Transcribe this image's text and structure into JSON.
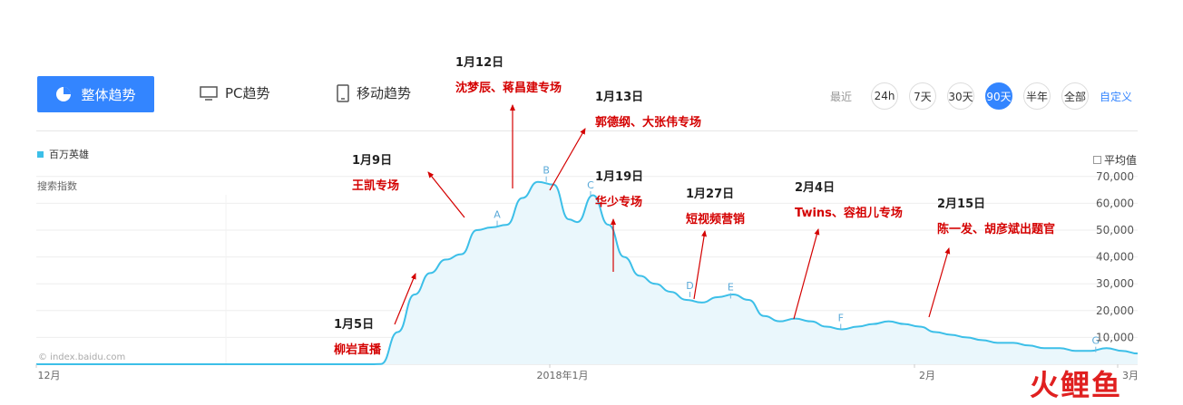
{
  "toolbar": {
    "overall_label": "整体趋势",
    "pc_label": "PC趋势",
    "mobile_label": "移动趋势",
    "range_label": "最近",
    "ranges": [
      "24h",
      "7天",
      "30天",
      "90天",
      "半年",
      "全部"
    ],
    "active_range": "90天",
    "custom_label": "自定义"
  },
  "legend_label": "百万英雄",
  "avg_label": "平均值",
  "source_label": "© index.baidu.com",
  "watermark": "火鲤鱼",
  "annotations": [
    {
      "date": "1月5日",
      "text": "柳岩直播"
    },
    {
      "date": "1月9日",
      "text": "王凯专场"
    },
    {
      "date": "1月12日",
      "text": "沈梦辰、蒋昌建专场"
    },
    {
      "date": "1月13日",
      "text": "郭德纲、大张伟专场"
    },
    {
      "date": "1月19日",
      "text": "华少专场"
    },
    {
      "date": "1月27日",
      "text": "短视频营销"
    },
    {
      "date": "2月4日",
      "text": "Twins、容祖儿专场"
    },
    {
      "date": "2月15日",
      "text": "陈一发、胡彦斌出题官"
    }
  ],
  "chart_data": {
    "type": "area",
    "ylabel": "搜索指数",
    "series": [
      {
        "name": "百万英雄",
        "color": "#3cbfe8"
      }
    ],
    "ylim": [
      0,
      75000
    ],
    "yticks": [
      10000,
      20000,
      30000,
      40000,
      50000,
      60000,
      70000
    ],
    "ytick_labels": [
      "10,000",
      "20,000",
      "30,000",
      "40,000",
      "50,000",
      "60,000",
      "70,000"
    ],
    "x_ticks": [
      {
        "label": "12月",
        "day": 0
      },
      {
        "label": "2018年1月",
        "day": 31
      },
      {
        "label": "2月",
        "day": 62
      },
      {
        "label": "3月",
        "day": 90
      }
    ],
    "grid": true,
    "points": [
      [
        0,
        0
      ],
      [
        10,
        0
      ],
      [
        20,
        0
      ],
      [
        25,
        0
      ],
      [
        27,
        0
      ],
      [
        28,
        0
      ],
      [
        28.8,
        100
      ],
      [
        30.2,
        12000
      ],
      [
        31.6,
        26000
      ],
      [
        32.9,
        34000
      ],
      [
        34.2,
        39000
      ],
      [
        35.5,
        41000
      ],
      [
        36.8,
        50000
      ],
      [
        38.0,
        51000
      ],
      [
        39.3,
        52000
      ],
      [
        40.6,
        62000
      ],
      [
        41.9,
        68000
      ],
      [
        43.2,
        67000
      ],
      [
        44.5,
        54000
      ],
      [
        45.2,
        53000
      ],
      [
        46.5,
        63000
      ],
      [
        47.8,
        52000
      ],
      [
        49.1,
        40000
      ],
      [
        50.4,
        33000
      ],
      [
        51.7,
        30000
      ],
      [
        53.0,
        27000
      ],
      [
        54.3,
        24000
      ],
      [
        55.6,
        23000
      ],
      [
        56.9,
        25000
      ],
      [
        58.2,
        26000
      ],
      [
        59.5,
        24000
      ],
      [
        60.8,
        18000
      ],
      [
        62.1,
        16000
      ],
      [
        63.4,
        17000
      ],
      [
        64.7,
        16000
      ],
      [
        66.0,
        14000
      ],
      [
        67.3,
        13000
      ],
      [
        68.6,
        14000
      ],
      [
        69.9,
        15000
      ],
      [
        71.2,
        16000
      ],
      [
        72.5,
        15000
      ],
      [
        73.8,
        14000
      ],
      [
        75.1,
        12000
      ],
      [
        76.4,
        11000
      ],
      [
        77.7,
        10000
      ],
      [
        79.0,
        9000
      ],
      [
        80.3,
        8000
      ],
      [
        81.6,
        8000
      ],
      [
        82.9,
        7000
      ],
      [
        84.2,
        6000
      ],
      [
        85.5,
        6000
      ],
      [
        86.8,
        5000
      ],
      [
        88.1,
        5000
      ],
      [
        89.4,
        6000
      ],
      [
        90.7,
        5000
      ],
      [
        92.0,
        4000
      ]
    ],
    "markers": [
      "A",
      "B",
      "C",
      "D",
      "E",
      "F",
      "G"
    ]
  }
}
